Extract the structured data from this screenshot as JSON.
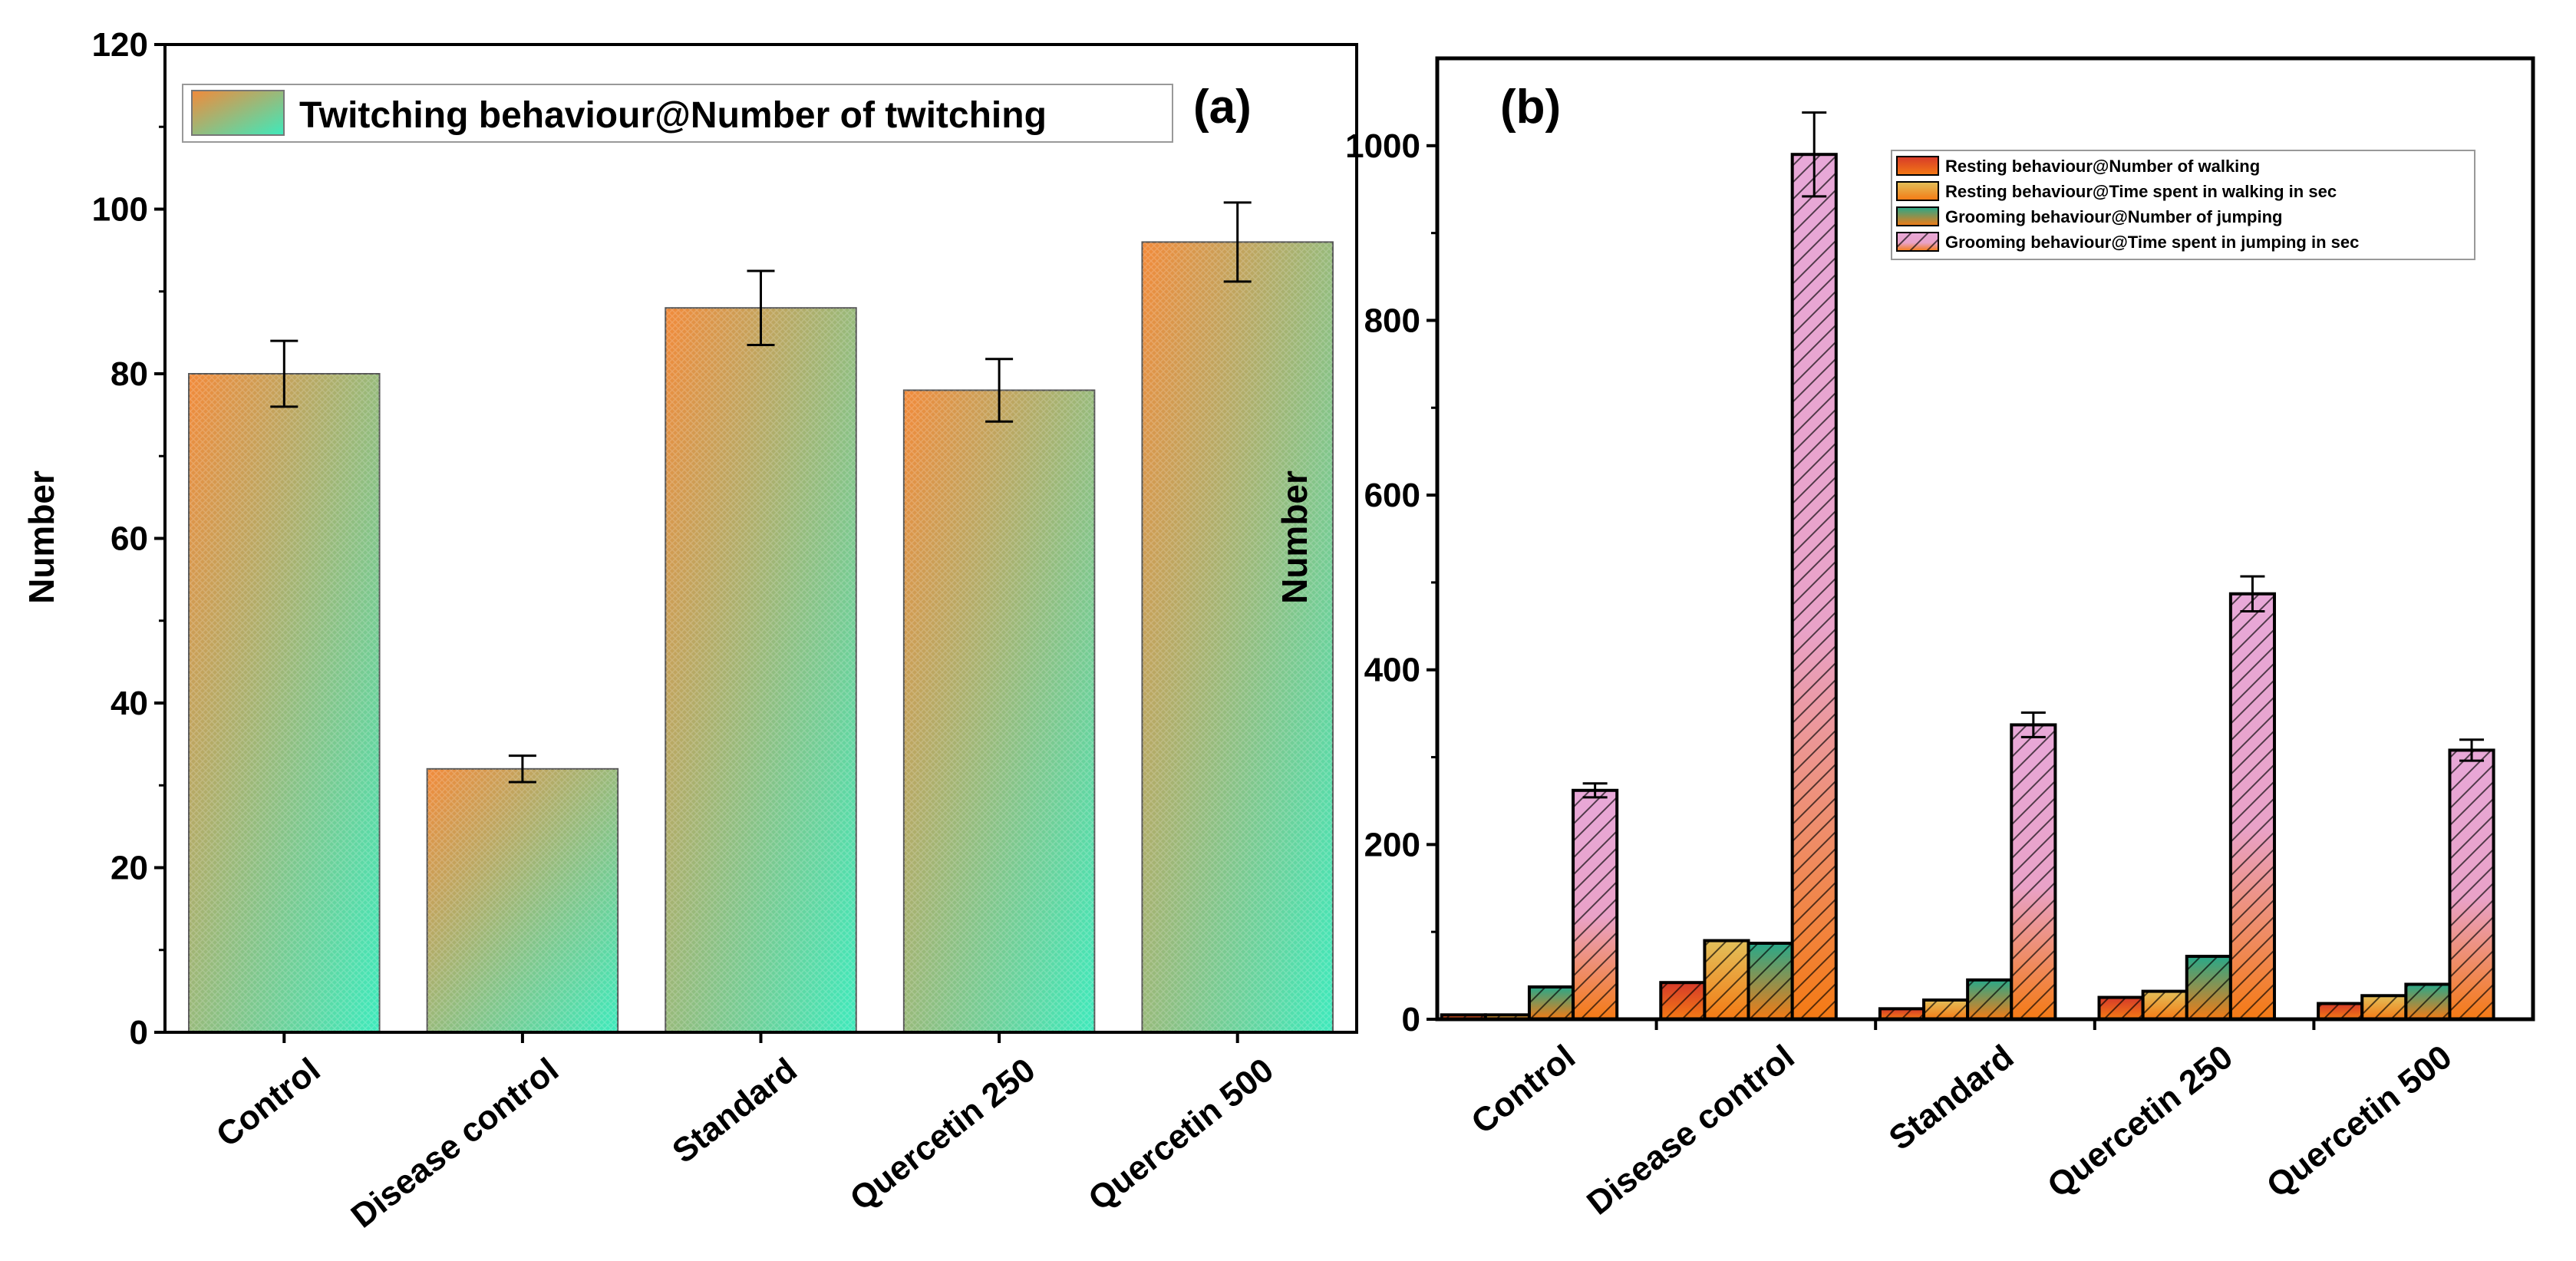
{
  "chart_data": [
    {
      "type": "bar",
      "panel_label": "(a)",
      "categories": [
        "Control",
        "Disease control",
        "Standard",
        "Quercetin 250",
        "Quercetin 500"
      ],
      "series": [
        {
          "name": "Twitching behaviour@Number of twitching",
          "values": [
            80,
            32,
            88,
            78,
            96
          ],
          "errors": [
            4,
            1.6,
            4.5,
            3.8,
            4.8
          ]
        }
      ],
      "ylabel": "Number",
      "xlabel": "",
      "ylim": [
        0,
        120
      ],
      "yticks": [
        0,
        20,
        40,
        60,
        80,
        100,
        120
      ],
      "legend_position": "top",
      "colors": {
        "top": "#f28a3a",
        "bottom": "#3deabc"
      }
    },
    {
      "type": "bar",
      "panel_label": "(b)",
      "categories": [
        "Control",
        "Disease control",
        "Standard",
        "Quercetin 250",
        "Quercetin 500"
      ],
      "series": [
        {
          "name": "Resting behaviour@Number of walking",
          "values": [
            5,
            42,
            12,
            25,
            18
          ],
          "errors": [
            0,
            0,
            0,
            0,
            0
          ]
        },
        {
          "name": "Resting behaviour@Time spent in walking in sec",
          "values": [
            5,
            90,
            22,
            32,
            27
          ],
          "errors": [
            0,
            0,
            0,
            0,
            0
          ]
        },
        {
          "name": "Grooming behaviour@Number of jumping",
          "values": [
            37,
            87,
            45,
            72,
            40
          ],
          "errors": [
            0,
            0,
            0,
            0,
            0
          ]
        },
        {
          "name": "Grooming behaviour@Time spent in jumping in sec",
          "values": [
            262,
            990,
            337,
            487,
            308
          ],
          "errors": [
            8,
            48,
            14,
            20,
            12
          ]
        }
      ],
      "ylabel": "Number",
      "xlabel": "",
      "ylim": [
        0,
        1100
      ],
      "yticks": [
        0,
        200,
        400,
        600,
        800,
        1000
      ],
      "legend_position": "top-right",
      "colors": {
        "s1_top": "#d63a2a",
        "s2_top": "#e2c05a",
        "s3_top": "#27a98a",
        "s4_top": "#e8a8d8",
        "bottom": "#f47a14"
      }
    }
  ]
}
